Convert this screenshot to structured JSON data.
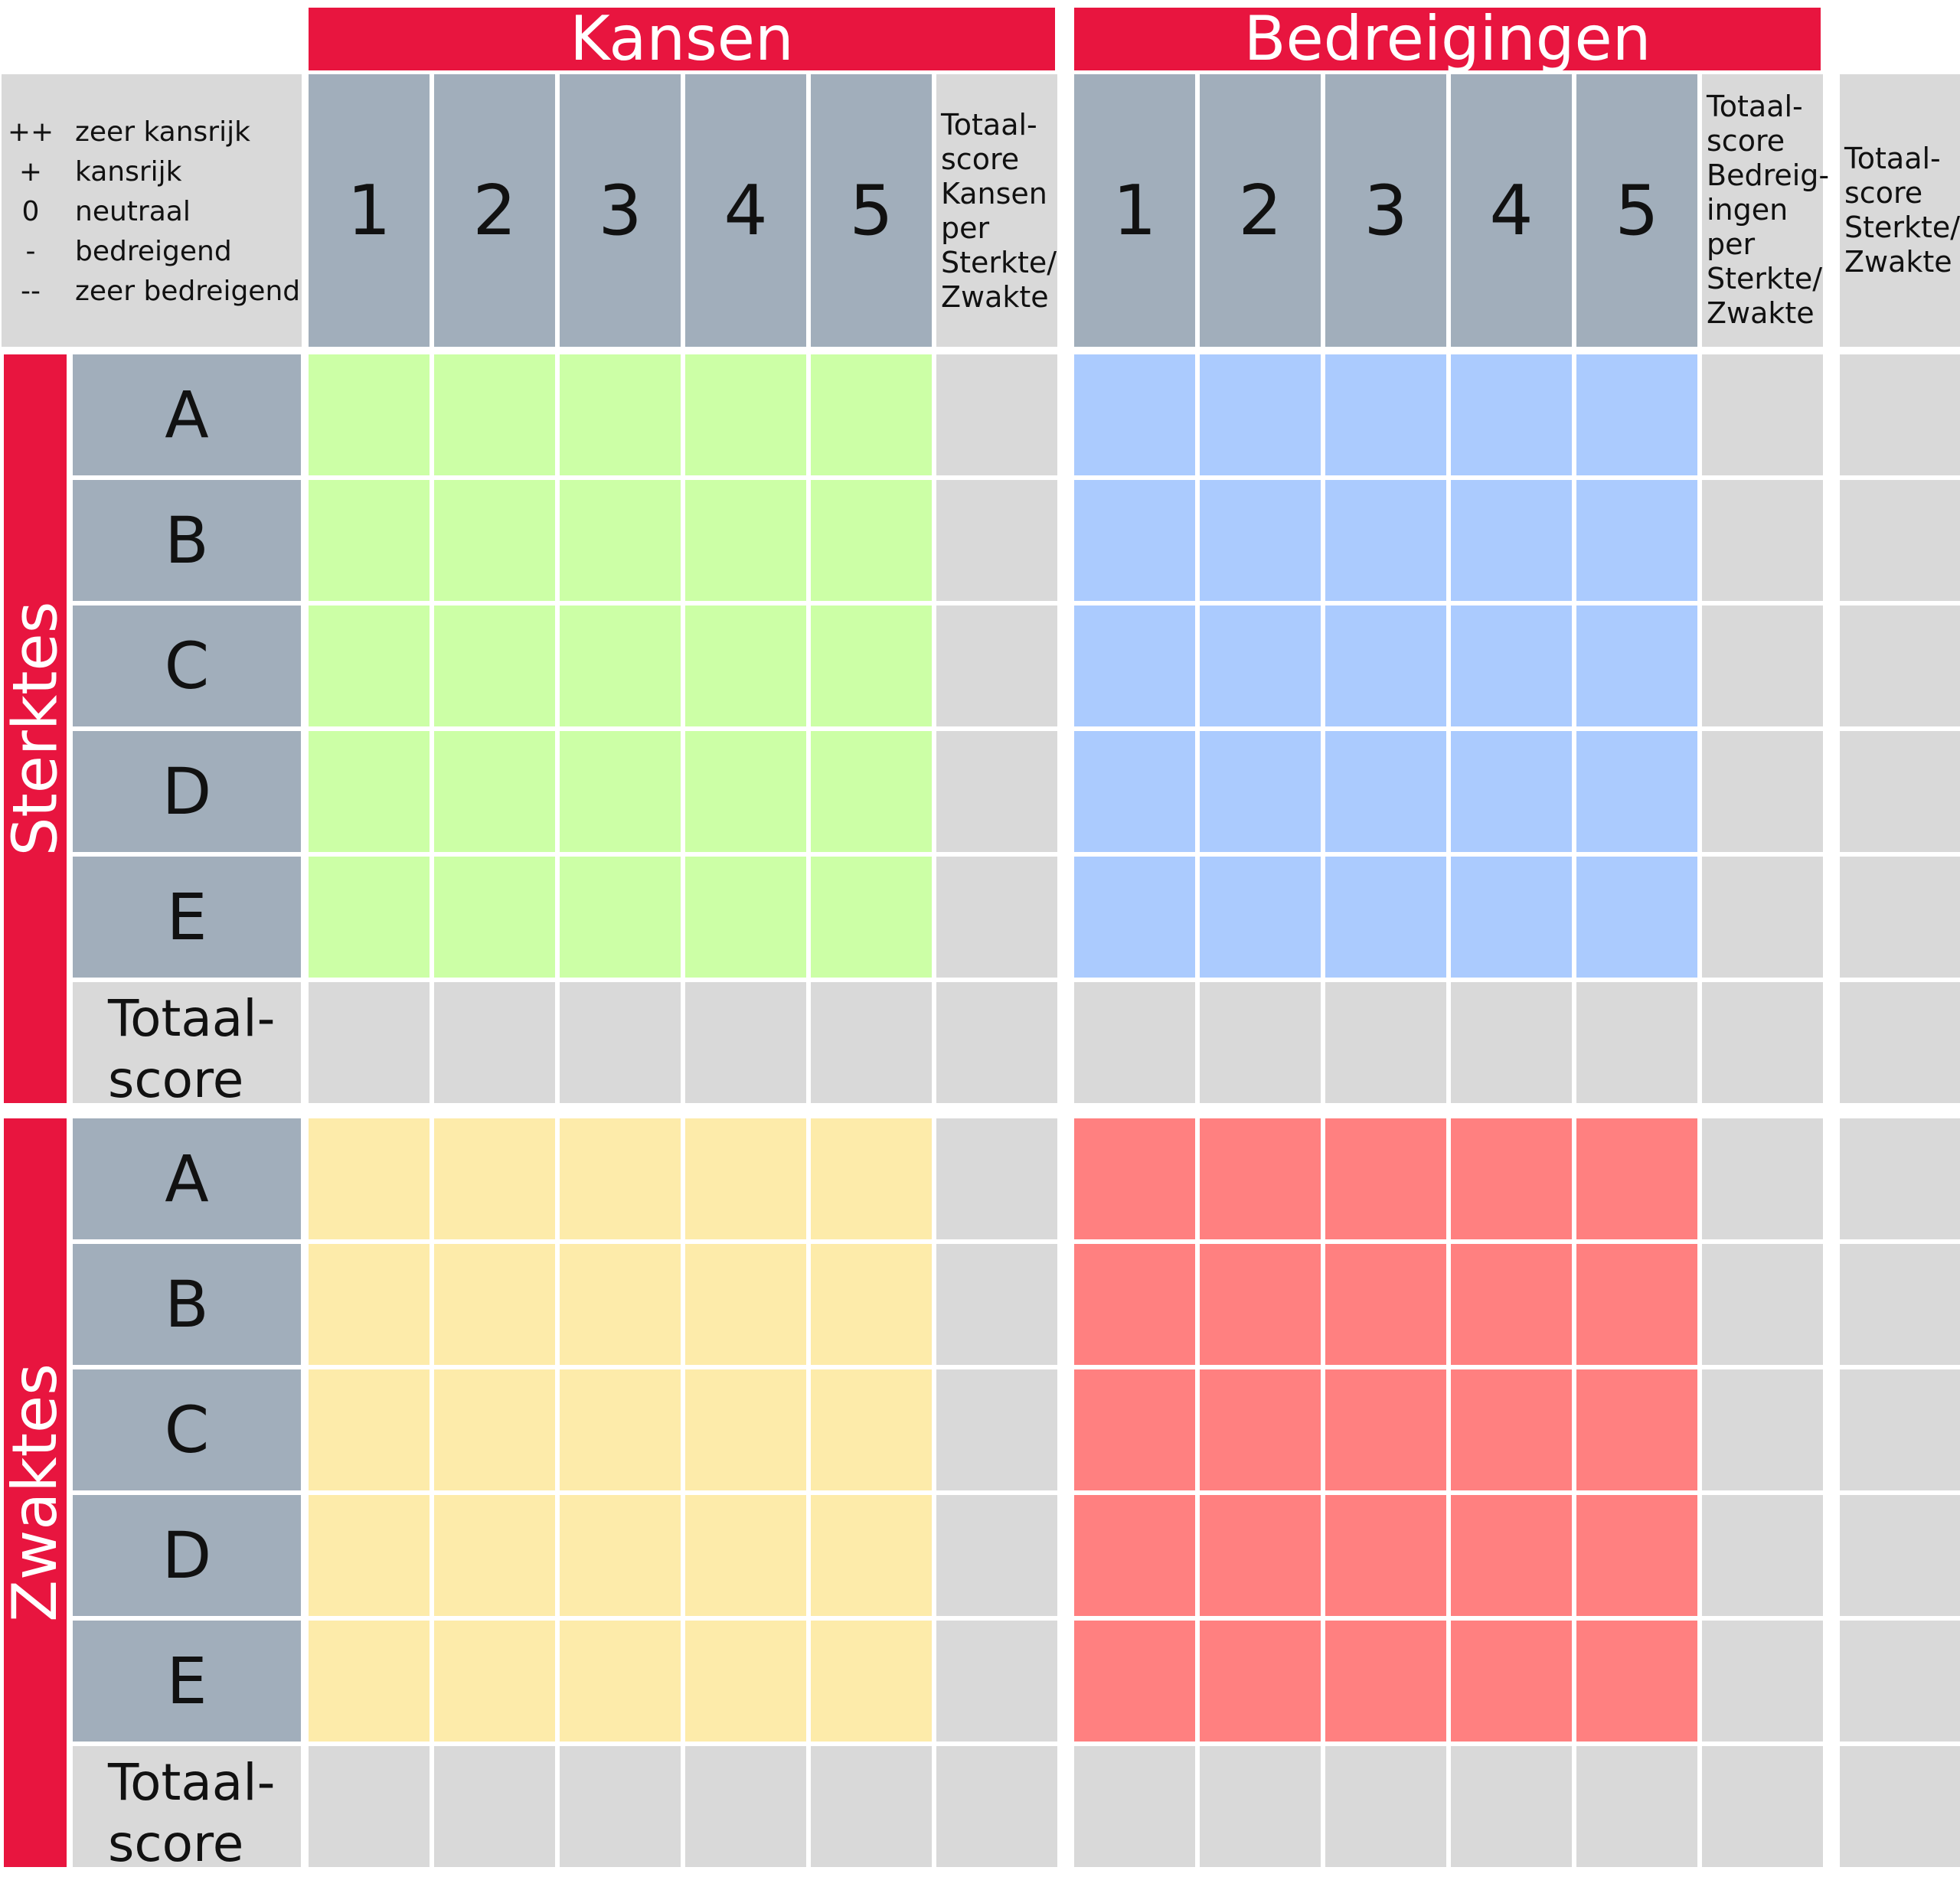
{
  "header": {
    "kansen": "Kansen",
    "bedreigingen": "Bedreigingen"
  },
  "legend": [
    {
      "symbol": "++",
      "label": "zeer kansrijk"
    },
    {
      "symbol": "+",
      "label": "kansrijk"
    },
    {
      "symbol": "0",
      "label": "neutraal"
    },
    {
      "symbol": "-",
      "label": "bedreigend"
    },
    {
      "symbol": "--",
      "label": "zeer bedreigend"
    }
  ],
  "columns": {
    "kansen_numbers": [
      "1",
      "2",
      "3",
      "4",
      "5"
    ],
    "bedreigingen_numbers": [
      "1",
      "2",
      "3",
      "4",
      "5"
    ],
    "kansen_total_label": "Totaal-\nscore\nKansen\nper\nSterkte/\nZwakte",
    "bedreigingen_total_label": "Totaal-\nscore\nBedreig-\ningen\nper\nSterkte/\nZwakte",
    "grand_total_label": "Totaal-\nscore\nSterkte/\nZwakte"
  },
  "sections": [
    {
      "title": "Sterktes",
      "rows": [
        "A",
        "B",
        "C",
        "D",
        "E"
      ],
      "total_label": "Totaal-\nscore"
    },
    {
      "title": "Zwaktes",
      "rows": [
        "A",
        "B",
        "C",
        "D",
        "E"
      ],
      "total_label": "Totaal-\nscore"
    }
  ],
  "colors": {
    "accent_red": "#e8153f",
    "header_gray_blue": "#a1aebb",
    "neutral_gray": "#d9d9d9",
    "sterktes_kansen": "#ccffa6",
    "sterktes_bedreigingen": "#abcbfe",
    "zwaktes_kansen": "#fdebaa",
    "zwaktes_bedreigingen": "#ff8080"
  }
}
